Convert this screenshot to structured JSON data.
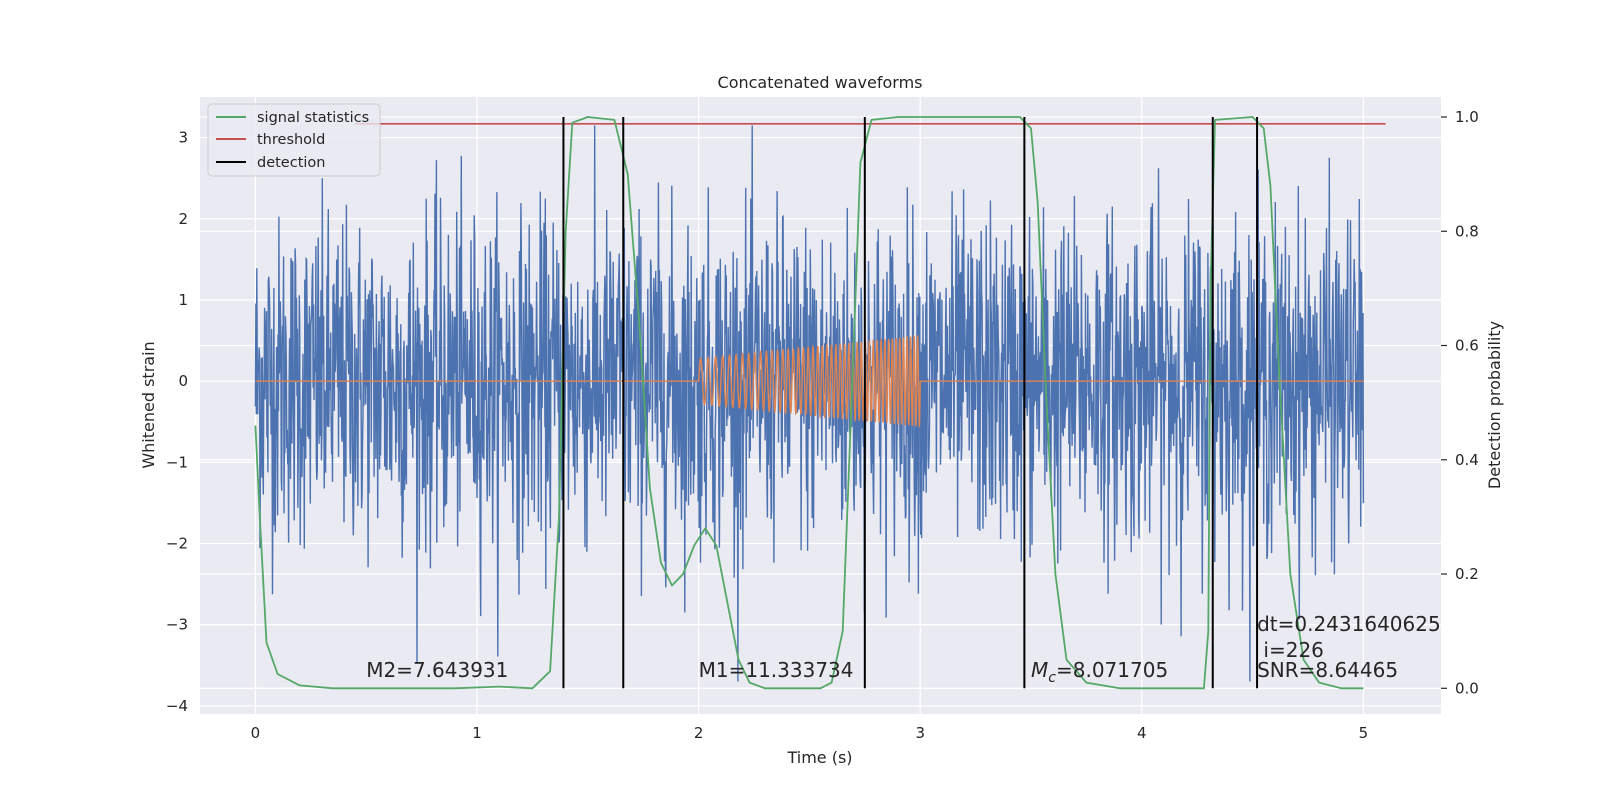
{
  "chart_data": {
    "type": "line",
    "title": "Concatenated waveforms",
    "xlabel": "Time (s)",
    "ylabel": "Whitened strain",
    "ylabel_right": "Detection probability",
    "xlim": [
      -0.25,
      5.35
    ],
    "ylim": [
      -4.1,
      3.5
    ],
    "ylim_right": [
      -0.045,
      1.035
    ],
    "x_ticks": [
      0,
      1,
      2,
      3,
      4,
      5
    ],
    "y_ticks": [
      3,
      2,
      1,
      0,
      -1,
      -2,
      -3,
      -4
    ],
    "y_tick_labels": [
      "3",
      "2",
      "1",
      "0",
      "−1",
      "−2",
      "−3",
      "−4"
    ],
    "y_right_ticks": [
      1.0,
      0.8,
      0.6,
      0.4,
      0.2,
      0.0
    ],
    "y_right_tick_labels": [
      "1.0",
      "0.8",
      "0.6",
      "0.4",
      "0.2",
      "0.0"
    ],
    "grid": true,
    "legend_position": "top-left",
    "legend": [
      {
        "label": "signal statistics",
        "color": "#55a868"
      },
      {
        "label": "threshold",
        "color": "#c44e52"
      },
      {
        "label": "detection",
        "color": "#000000"
      }
    ],
    "series": [
      {
        "key": "noise",
        "color": "#4c72b0",
        "x_range": [
          0,
          5
        ],
        "amplitude_range": [
          -3.7,
          3.15
        ],
        "axis": "left"
      },
      {
        "key": "template",
        "color": "#dd8452",
        "x_range": [
          0,
          5
        ],
        "chirp_x_range": [
          2.0,
          3.0
        ],
        "chirp_amplitude": [
          0.28,
          0.56
        ],
        "axis": "left"
      },
      {
        "key": "signal statistics",
        "color": "#55a868",
        "axis": "right",
        "points": [
          [
            0.0,
            0.46
          ],
          [
            0.02,
            0.3
          ],
          [
            0.05,
            0.08
          ],
          [
            0.1,
            0.025
          ],
          [
            0.2,
            0.005
          ],
          [
            0.35,
            0.0
          ],
          [
            0.9,
            0.0
          ],
          [
            1.1,
            0.003
          ],
          [
            1.25,
            0.0
          ],
          [
            1.33,
            0.03
          ],
          [
            1.37,
            0.3
          ],
          [
            1.4,
            0.8
          ],
          [
            1.43,
            0.99
          ],
          [
            1.5,
            1.0
          ],
          [
            1.62,
            0.995
          ],
          [
            1.68,
            0.9
          ],
          [
            1.73,
            0.65
          ],
          [
            1.78,
            0.35
          ],
          [
            1.83,
            0.22
          ],
          [
            1.88,
            0.18
          ],
          [
            1.93,
            0.2
          ],
          [
            1.98,
            0.25
          ],
          [
            2.03,
            0.28
          ],
          [
            2.08,
            0.25
          ],
          [
            2.13,
            0.15
          ],
          [
            2.18,
            0.05
          ],
          [
            2.23,
            0.01
          ],
          [
            2.3,
            0.0
          ],
          [
            2.55,
            0.0
          ],
          [
            2.6,
            0.01
          ],
          [
            2.65,
            0.1
          ],
          [
            2.7,
            0.6
          ],
          [
            2.73,
            0.92
          ],
          [
            2.78,
            0.995
          ],
          [
            2.9,
            1.0
          ],
          [
            3.45,
            1.0
          ],
          [
            3.5,
            0.98
          ],
          [
            3.53,
            0.85
          ],
          [
            3.57,
            0.5
          ],
          [
            3.61,
            0.2
          ],
          [
            3.66,
            0.05
          ],
          [
            3.75,
            0.01
          ],
          [
            3.9,
            0.0
          ],
          [
            4.28,
            0.0
          ],
          [
            4.3,
            0.1
          ],
          [
            4.31,
            0.7
          ],
          [
            4.33,
            0.995
          ],
          [
            4.5,
            1.0
          ],
          [
            4.55,
            0.98
          ],
          [
            4.58,
            0.88
          ],
          [
            4.62,
            0.55
          ],
          [
            4.67,
            0.2
          ],
          [
            4.73,
            0.05
          ],
          [
            4.8,
            0.01
          ],
          [
            4.9,
            0.0
          ],
          [
            5.0,
            0.0
          ]
        ]
      },
      {
        "key": "threshold",
        "color": "#c44e52",
        "axis": "right",
        "x": [
          0.45,
          5.1
        ],
        "y": 0.988
      }
    ],
    "detections": [
      1.39,
      1.66,
      2.75,
      3.47,
      4.32,
      4.52
    ],
    "detection_range_right": [
      0.0,
      1.0
    ],
    "annotations": [
      {
        "text": "M2=7.643931",
        "x": 0.5,
        "y": 0.02,
        "axis": "right"
      },
      {
        "text": "M1=11.333734",
        "x": 2.0,
        "y": 0.02,
        "axis": "right"
      },
      {
        "text_main": "M",
        "text_sub": "c",
        "text_rest": "=8.071705",
        "x": 3.5,
        "y": 0.02,
        "axis": "right"
      },
      {
        "text": "dt=0.2431640625",
        "x": 4.52,
        "y": 0.1,
        "axis": "right"
      },
      {
        "text": " i=226",
        "x": 4.52,
        "y": 0.055,
        "axis": "right"
      },
      {
        "text": "SNR=8.64465",
        "x": 4.52,
        "y": 0.02,
        "axis": "right"
      }
    ]
  }
}
